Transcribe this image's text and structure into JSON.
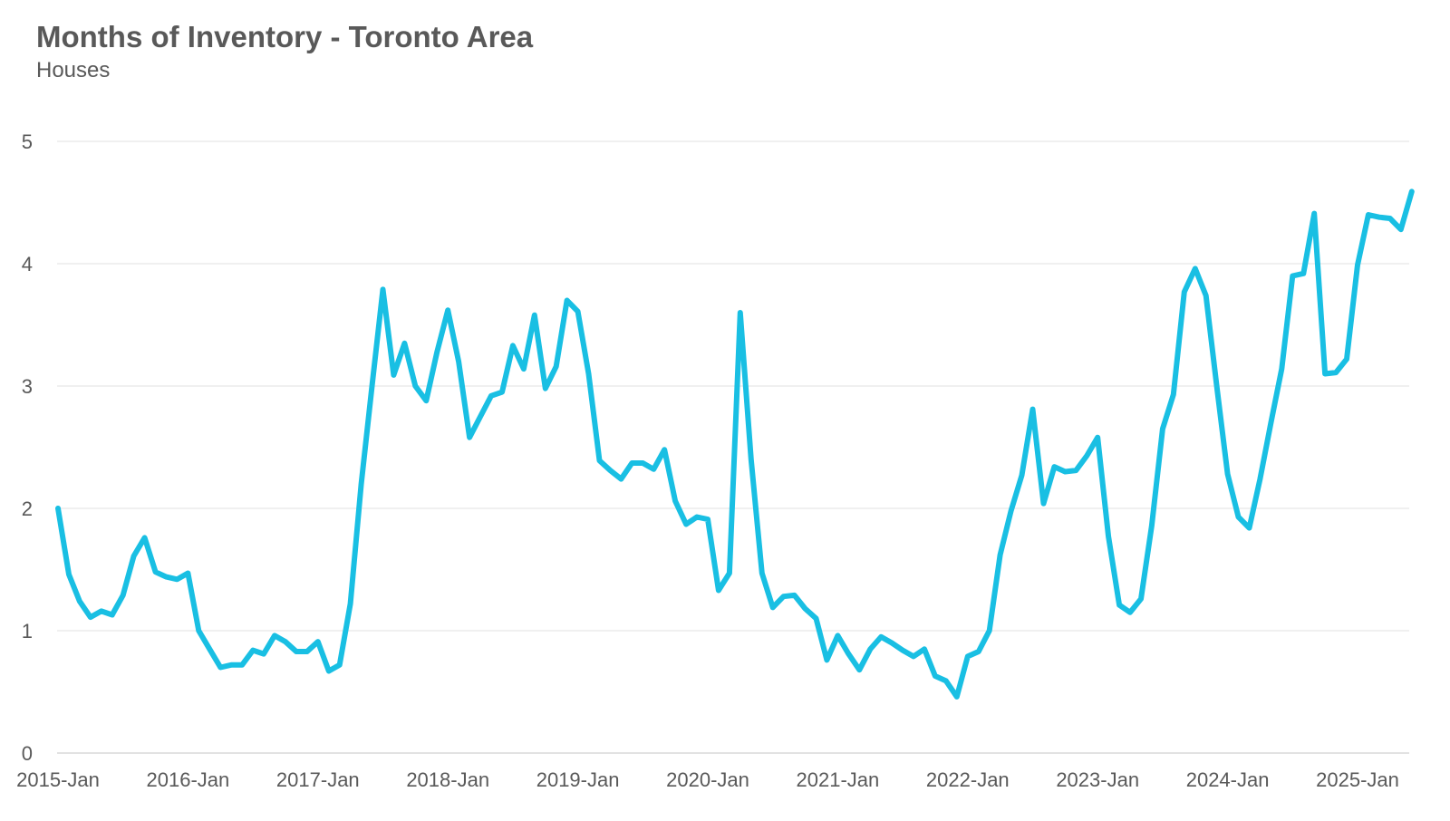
{
  "title": "Months of Inventory - Toronto Area",
  "subtitle": "Houses",
  "colors": {
    "line": "#19BFE3",
    "grid": "#E6E6E6",
    "axis": "#D9D9D9",
    "text": "#595959",
    "background": "#FFFFFF"
  },
  "chart_data": {
    "type": "line",
    "title": "Months of Inventory - Toronto Area",
    "subtitle": "Houses",
    "xlabel": "",
    "ylabel": "",
    "ylim": [
      0,
      5
    ],
    "yticks": [
      0,
      1,
      2,
      3,
      4,
      5
    ],
    "x_tick_labels": [
      "2015-Jan",
      "2016-Jan",
      "2017-Jan",
      "2018-Jan",
      "2019-Jan",
      "2020-Jan",
      "2021-Jan",
      "2022-Jan",
      "2023-Jan",
      "2024-Jan",
      "2025-Jan"
    ],
    "grid": true,
    "legend": "none",
    "x_start": "2015-Jan",
    "x_end": "2025-Jun",
    "series": [
      {
        "values": [
          2.0,
          1.46,
          1.24,
          1.11,
          1.16,
          1.13,
          1.29,
          1.61,
          1.76,
          1.48,
          1.44,
          1.42,
          1.47,
          1.0,
          0.85,
          0.7,
          0.72,
          0.72,
          0.84,
          0.81,
          0.96,
          0.91,
          0.83,
          0.83,
          0.91,
          0.67,
          0.72,
          1.22,
          2.2,
          3.0,
          3.79,
          3.09,
          3.35,
          3.0,
          2.88,
          3.28,
          3.62,
          3.2,
          2.58,
          2.75,
          2.92,
          2.95,
          3.33,
          3.14,
          3.58,
          2.98,
          3.16,
          3.7,
          3.61,
          3.1,
          2.39,
          2.31,
          2.24,
          2.37,
          2.37,
          2.32,
          2.48,
          2.06,
          1.87,
          1.93,
          1.91,
          1.33,
          1.47,
          3.6,
          2.4,
          1.47,
          1.19,
          1.28,
          1.29,
          1.18,
          1.1,
          0.76,
          0.96,
          0.81,
          0.68,
          0.85,
          0.95,
          0.9,
          0.84,
          0.79,
          0.85,
          0.63,
          0.59,
          0.46,
          0.79,
          0.83,
          1.0,
          1.62,
          1.98,
          2.27,
          2.81,
          2.04,
          2.34,
          2.3,
          2.31,
          2.43,
          2.58,
          1.77,
          1.21,
          1.15,
          1.26,
          1.86,
          2.65,
          2.93,
          3.77,
          3.96,
          3.74,
          3.0,
          2.28,
          1.93,
          1.84,
          2.24,
          2.7,
          3.14,
          3.9,
          3.92,
          4.41,
          3.1,
          3.11,
          3.22,
          3.99,
          4.4,
          4.38,
          4.37,
          4.28,
          4.59
        ]
      }
    ]
  }
}
